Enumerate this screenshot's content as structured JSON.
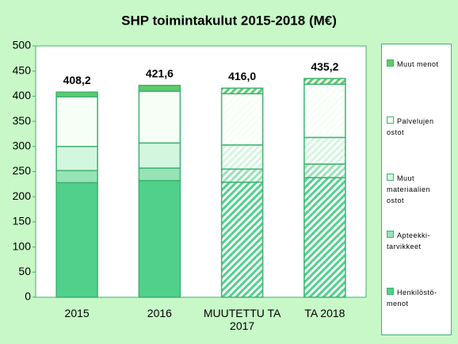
{
  "chart_data": {
    "type": "stacked_bar",
    "title": "SHP toimintakulut 2015-2018 (M€)",
    "categories": [
      "2015",
      "2016",
      "MUUTETTU TA 2017",
      "TA 2018"
    ],
    "series": [
      {
        "name": "Henkilöstö-menot",
        "color": "#4fd18b",
        "values": [
          228,
          232,
          229,
          238
        ]
      },
      {
        "name": "Apteekki-tarvikkeet",
        "color": "#97e3b6",
        "values": [
          24,
          25,
          26,
          27
        ]
      },
      {
        "name": "Muut materiaalien ostot",
        "color": "#d3f6df",
        "values": [
          48,
          50,
          48,
          53
        ]
      },
      {
        "name": "Palvelujen ostot",
        "color": "#f6fff6",
        "values": [
          99,
          103,
          102,
          106
        ]
      },
      {
        "name": "Muut menot",
        "color": "#5ccc6a",
        "values": [
          9.2,
          11.6,
          11,
          11.2
        ]
      }
    ],
    "totals": [
      408.2,
      421.6,
      416.0,
      435.2
    ],
    "total_labels": [
      "408,2",
      "421,6",
      "416,0",
      "435,2"
    ],
    "hatched": [
      false,
      false,
      true,
      true
    ],
    "ylim": [
      0,
      500
    ],
    "yticks": [
      0,
      50,
      100,
      150,
      200,
      250,
      300,
      350,
      400,
      450,
      500
    ],
    "grid": false,
    "legend": "right"
  }
}
